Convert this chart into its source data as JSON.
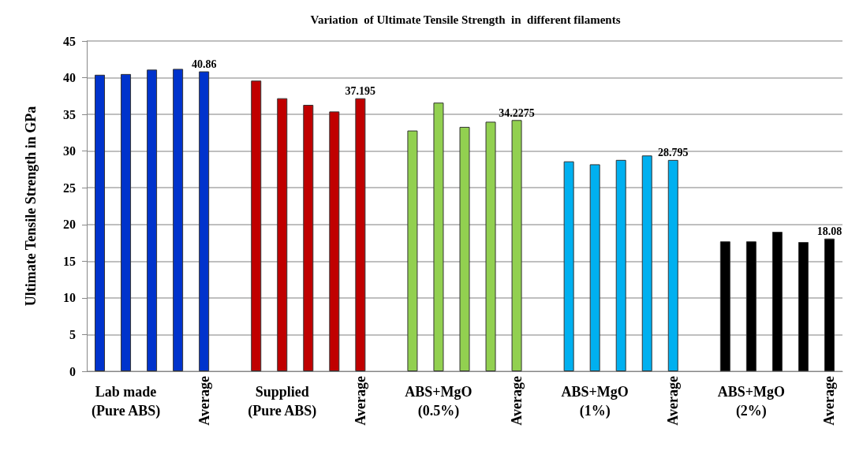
{
  "chart_data": {
    "type": "bar",
    "title": "Variation  of Ultimate Tensile Strength  in  different filaments",
    "ylabel": "Ultimate Tensile Strength in GPa",
    "categories": [
      null,
      "Lab made\n(Pure ABS)",
      null,
      null,
      "Average",
      null,
      null,
      "Supplied\n(Pure ABS)",
      null,
      null,
      "Average",
      null,
      null,
      "ABS+MgO\n(0.5%)",
      null,
      null,
      "Average",
      null,
      null,
      "ABS+MgO\n(1%)",
      null,
      null,
      "Average",
      null,
      null,
      "ABS+MgO\n(2%)",
      null,
      null,
      "Average"
    ],
    "values": [
      40.4,
      40.5,
      41.1,
      41.2,
      40.86,
      null,
      39.6,
      37.2,
      36.3,
      35.4,
      37.195,
      null,
      32.8,
      36.6,
      33.3,
      34.0,
      34.2275,
      null,
      28.6,
      28.2,
      28.8,
      29.4,
      28.795,
      null,
      17.7,
      17.7,
      19.0,
      17.6,
      18.08
    ],
    "colors": [
      "#0033cc",
      "#0033cc",
      "#0033cc",
      "#0033cc",
      "#0033cc",
      null,
      "#c00000",
      "#c00000",
      "#c00000",
      "#c00000",
      "#c00000",
      null,
      "#92d050",
      "#92d050",
      "#92d050",
      "#92d050",
      "#92d050",
      null,
      "#00b0f0",
      "#00b0f0",
      "#00b0f0",
      "#00b0f0",
      "#00b0f0",
      null,
      "#000000",
      "#000000",
      "#000000",
      "#000000",
      "#000000"
    ],
    "value_labels": [
      null,
      null,
      null,
      null,
      "40.86",
      null,
      null,
      null,
      null,
      null,
      "37.195",
      null,
      null,
      null,
      null,
      null,
      "34.2275",
      null,
      null,
      null,
      null,
      null,
      "28.795",
      null,
      null,
      null,
      null,
      null,
      "18.08"
    ],
    "ylim": [
      0,
      45
    ],
    "yticks": [
      0,
      5,
      10,
      15,
      20,
      25,
      30,
      35,
      40,
      45
    ],
    "grid": "y"
  }
}
